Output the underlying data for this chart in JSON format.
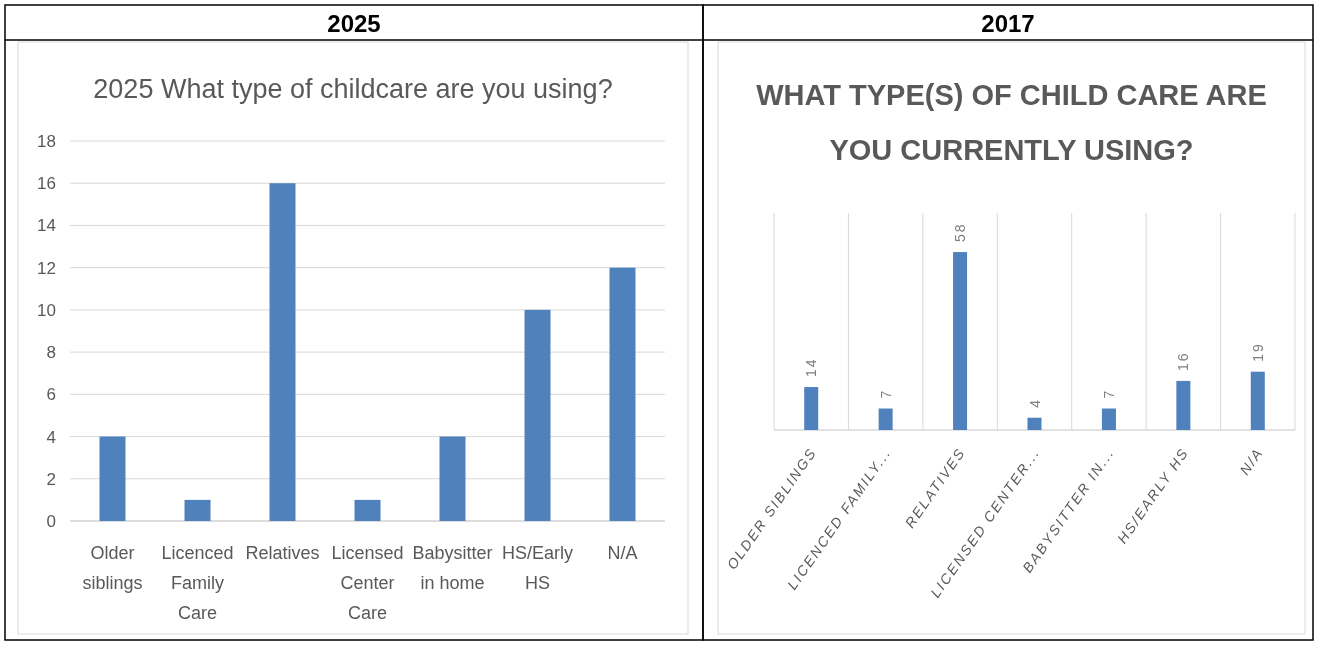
{
  "chart_data": [
    {
      "type": "bar",
      "title": "2025 What type of childcare are you using?",
      "annotations": [
        "2025"
      ],
      "categories": [
        "Older siblings",
        "Licenced Family Care",
        "Relatives",
        "Licensed Center Care",
        "Babysitter in home",
        "HS/Early HS",
        "N/A"
      ],
      "values": [
        4,
        1,
        16,
        1,
        4,
        10,
        12
      ],
      "color": "#4f81bd",
      "ylim": [
        0,
        18
      ],
      "yticks": [
        0,
        2,
        4,
        6,
        8,
        10,
        12,
        14,
        16,
        18
      ],
      "grid": "y"
    },
    {
      "type": "bar",
      "title": "WHAT TYPE(S) OF CHILD CARE ARE YOU CURRENTLY USING?",
      "annotations": [
        "2017"
      ],
      "categories": [
        "OLDER SIBLINGS",
        "LICENCED FAMILY...",
        "RELATIVES",
        "LICENSED CENTER...",
        "BABYSITTER IN...",
        "HS/EARLY HS",
        "N/A"
      ],
      "values": [
        14,
        7,
        58,
        4,
        7,
        16,
        19
      ],
      "color": "#4f81bd",
      "data_labels": true,
      "grid": "x",
      "tick_labels": "x"
    }
  ]
}
